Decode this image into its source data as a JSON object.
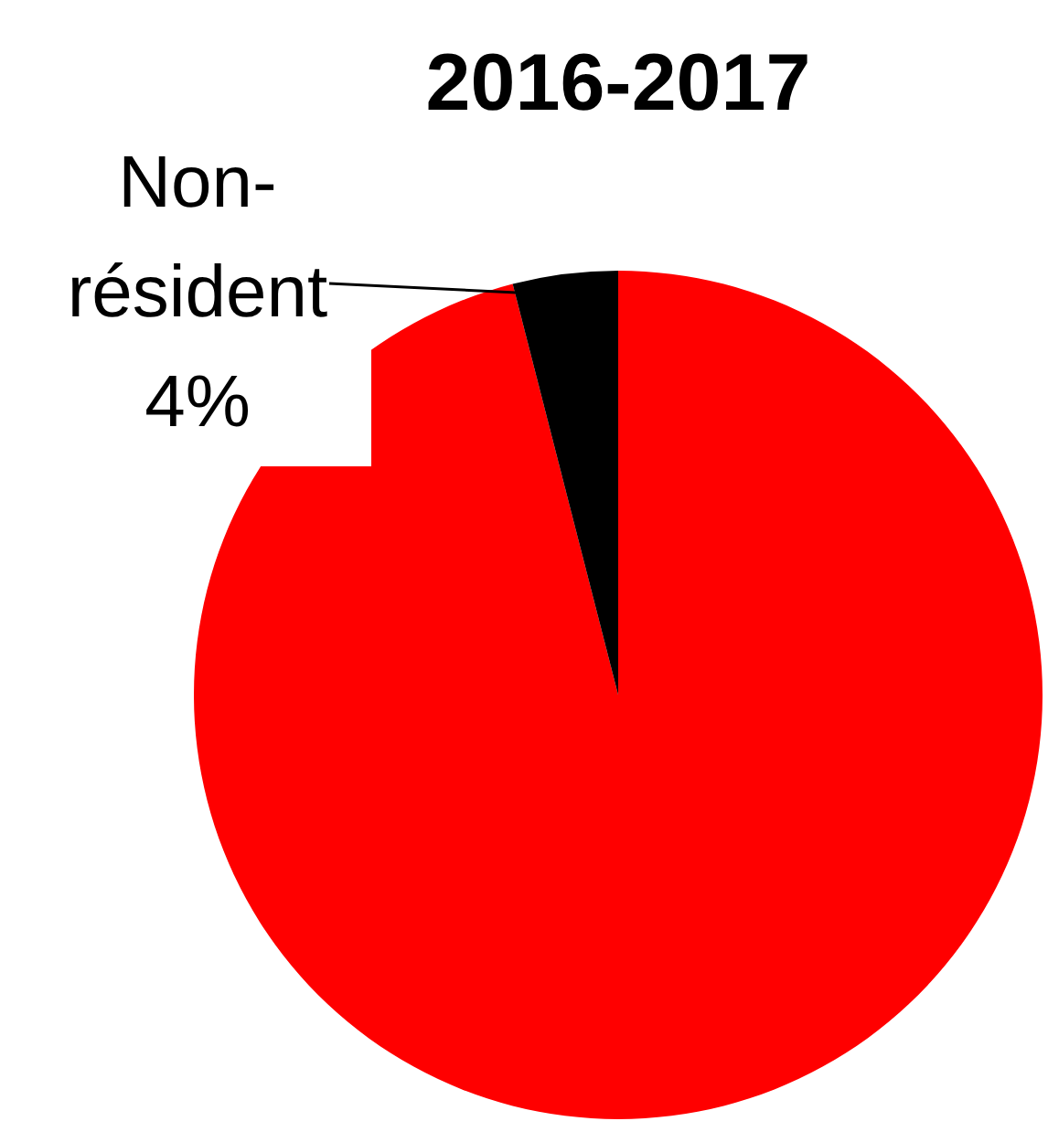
{
  "chart_data": {
    "type": "pie",
    "title": "2016-2017",
    "categories": [
      null,
      "Non-résident"
    ],
    "values": [
      96,
      4
    ],
    "colors": [
      "#ff0000",
      "#000000"
    ],
    "value_labels": [
      null,
      "4%"
    ]
  }
}
